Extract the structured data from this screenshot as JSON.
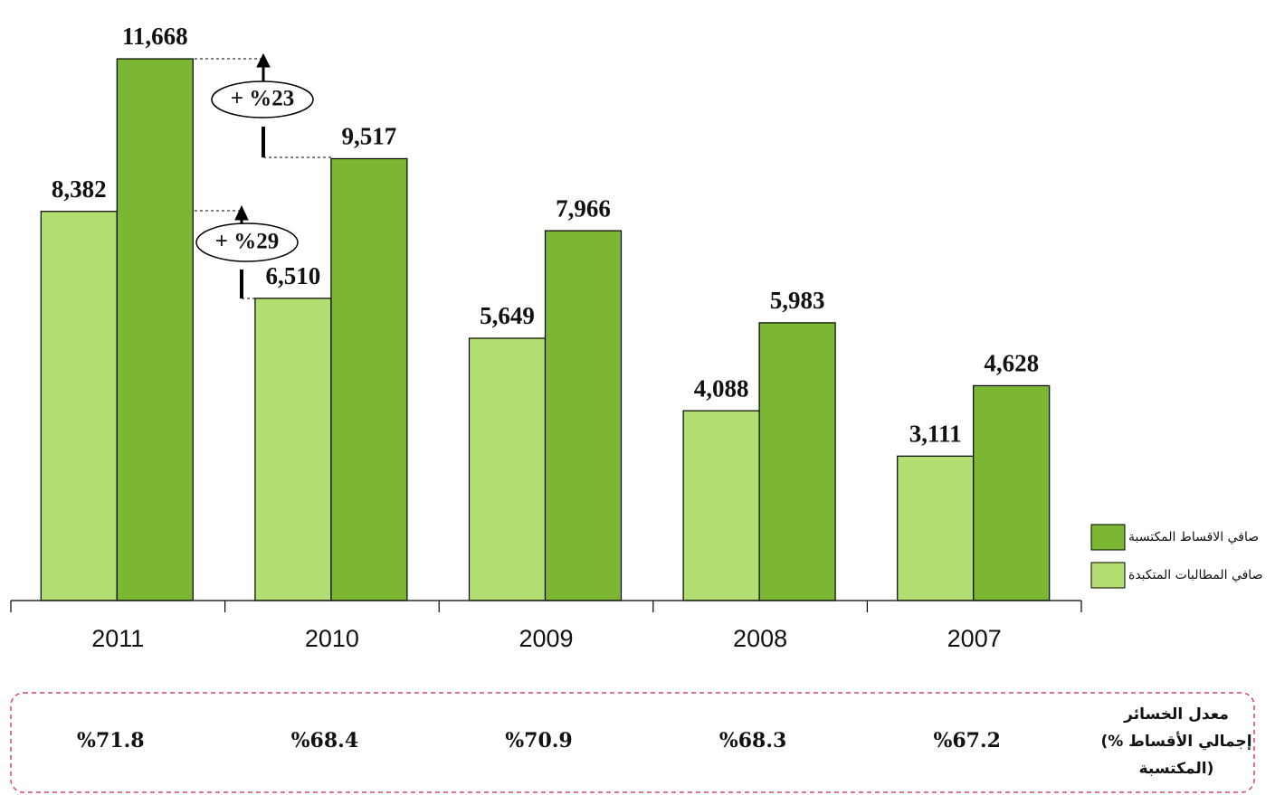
{
  "chart_data": {
    "type": "bar",
    "categories": [
      "2011",
      "2010",
      "2009",
      "2008",
      "2007"
    ],
    "series": [
      {
        "name": "صافي المطالبات المتكبدة",
        "color": "#b3df72",
        "values": [
          8382,
          6510,
          5649,
          4088,
          3111
        ],
        "value_labels": [
          "8,382",
          "6,510",
          "5,649",
          "4,088",
          "3,111"
        ]
      },
      {
        "name": "صافي الاقساط المكتسبة",
        "color": "#7cb733",
        "values": [
          11668,
          9517,
          7966,
          5983,
          4628
        ],
        "value_labels": [
          "11,668",
          "9,517",
          "7,966",
          "5,983",
          "4,628"
        ]
      }
    ],
    "ylim": [
      0,
      12000
    ],
    "legend": "right",
    "annotations": [
      "+ %23",
      "+ %29"
    ],
    "loss_ratio": {
      "label": [
        "معدل الخسائر",
        "(% إجمالي الأقساط",
        "المكتسبة)"
      ],
      "values": [
        71.8,
        68.4,
        70.9,
        68.3,
        67.2
      ],
      "value_labels": [
        "%71.8",
        "%68.4",
        "%70.9",
        "%68.3",
        "%67.2"
      ]
    }
  }
}
